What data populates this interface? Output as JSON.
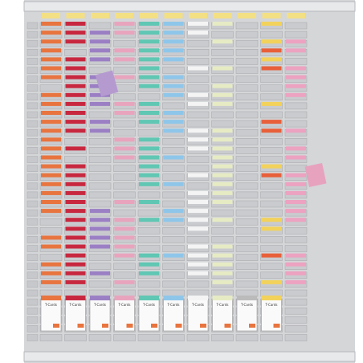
{
  "card_boxes": [
    "T-Cards",
    "T-Cards",
    "T-Cards",
    "T-Cards",
    "T-Cards",
    "T-Cards",
    "T-Cards",
    "T-Cards",
    "T-Cards",
    "T-Cards"
  ]
}
